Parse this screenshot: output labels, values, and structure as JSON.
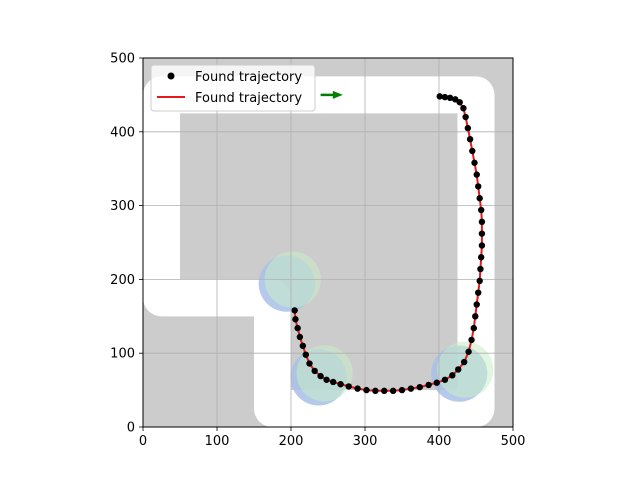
{
  "chart_data": {
    "type": "scatter",
    "xlim": [
      0,
      500
    ],
    "ylim": [
      0,
      500
    ],
    "xticks": [
      "0",
      "100",
      "200",
      "300",
      "400",
      "500"
    ],
    "yticks": [
      "0",
      "100",
      "200",
      "300",
      "400",
      "500"
    ],
    "grid": true,
    "legend_position": "top-left",
    "legend": [
      {
        "label": "Found trajectory",
        "marker": "dot",
        "color": "#000000"
      },
      {
        "label": "Found trajectory",
        "marker": "line",
        "color": "#e41a1c"
      }
    ],
    "colors": {
      "background": "#cccccc",
      "free_space": "#ffffff",
      "trajectory_points": "#000000",
      "trajectory_line": "#e41a1c",
      "region_blue": "#a8bfe6",
      "region_green": "#c8ecc8",
      "goal_arrow": "#008000"
    },
    "corridor": [
      [
        25,
        175
      ],
      [
        25,
        450
      ],
      [
        450,
        450
      ],
      [
        450,
        25
      ],
      [
        175,
        25
      ],
      [
        175,
        175
      ],
      [
        25,
        175
      ]
    ],
    "corridor_width": 50,
    "regions": [
      {
        "name": "blue",
        "cx": 197,
        "cy": 197,
        "r": 38
      },
      {
        "name": "green",
        "cx": 197,
        "cy": 197,
        "r": 38
      },
      {
        "name": "blue",
        "cx": 240,
        "cy": 70,
        "r": 38
      },
      {
        "name": "green",
        "cx": 240,
        "cy": 70,
        "r": 38
      },
      {
        "name": "blue",
        "cx": 430,
        "cy": 75,
        "r": 38
      },
      {
        "name": "green",
        "cx": 430,
        "cy": 75,
        "r": 38
      }
    ],
    "goal_arrow": {
      "x": 240,
      "y": 450,
      "dx": 30,
      "dy": 0
    },
    "series": [
      {
        "x": [
          205,
          206,
          209,
          212,
          216,
          220,
          225,
          232,
          240,
          248,
          257,
          267,
          278,
          290,
          302,
          314,
          326,
          338,
          350,
          362,
          374,
          386,
          397,
          408,
          418,
          426,
          434,
          440,
          444,
          447,
          449,
          451,
          453,
          455,
          456,
          457,
          458,
          458,
          458,
          457,
          455,
          453,
          451,
          448,
          445,
          442,
          439,
          436,
          433,
          428,
          422,
          415,
          408,
          401
        ],
        "y": [
          158,
          146,
          134,
          122,
          110,
          98,
          86,
          76,
          69,
          64,
          61,
          58,
          55,
          52,
          50,
          49,
          49,
          49,
          50,
          52,
          54,
          57,
          60,
          64,
          70,
          78,
          88,
          102,
          118,
          134,
          150,
          166,
          182,
          198,
          214,
          230,
          246,
          262,
          278,
          294,
          310,
          326,
          342,
          358,
          374,
          390,
          405,
          420,
          432,
          440,
          444,
          446,
          447,
          448
        ]
      }
    ]
  }
}
